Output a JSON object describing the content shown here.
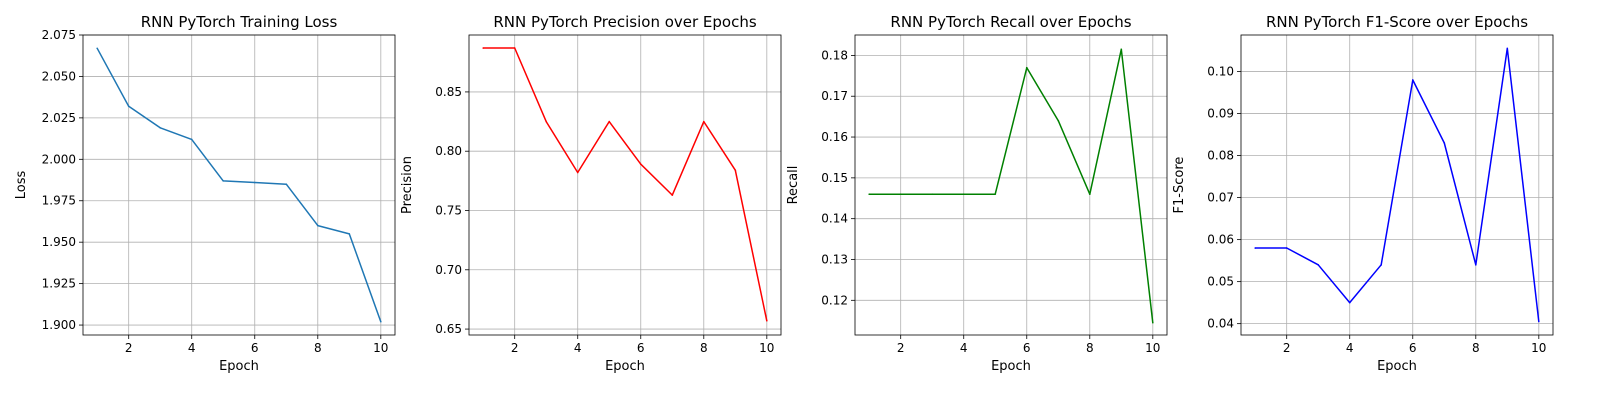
{
  "chart_data": [
    {
      "type": "line",
      "title": "RNN PyTorch Training Loss",
      "xlabel": "Epoch",
      "ylabel": "Loss",
      "grid": true,
      "color": "#1f77b4",
      "xlim": [
        0.55,
        10.45
      ],
      "ylim": [
        1.894,
        2.075
      ],
      "x_ticks": [
        2,
        4,
        6,
        8,
        10
      ],
      "y_ticks": [
        1.9,
        1.925,
        1.95,
        1.975,
        2.0,
        2.025,
        2.05,
        2.075
      ],
      "y_tick_labels": [
        "1.900",
        "1.925",
        "1.950",
        "1.975",
        "2.000",
        "2.025",
        "2.050",
        "2.075"
      ],
      "series": [
        {
          "x": [
            1,
            2,
            3,
            4,
            5,
            6,
            7,
            8,
            9,
            10
          ],
          "values": [
            2.067,
            2.032,
            2.019,
            2.012,
            1.987,
            1.986,
            1.985,
            1.96,
            1.955,
            1.902
          ]
        }
      ]
    },
    {
      "type": "line",
      "title": "RNN PyTorch Precision over Epochs",
      "xlabel": "Epoch",
      "ylabel": "Precision",
      "grid": true,
      "color": "#ff0000",
      "xlim": [
        0.55,
        10.45
      ],
      "ylim": [
        0.645,
        0.898
      ],
      "x_ticks": [
        2,
        4,
        6,
        8,
        10
      ],
      "y_ticks": [
        0.65,
        0.7,
        0.75,
        0.8,
        0.85
      ],
      "y_tick_labels": [
        "0.65",
        "0.70",
        "0.75",
        "0.80",
        "0.85"
      ],
      "series": [
        {
          "x": [
            1,
            2,
            3,
            4,
            5,
            6,
            7,
            8,
            9,
            10
          ],
          "values": [
            0.887,
            0.887,
            0.825,
            0.782,
            0.825,
            0.789,
            0.763,
            0.825,
            0.784,
            0.657
          ]
        }
      ]
    },
    {
      "type": "line",
      "title": "RNN PyTorch Recall over Epochs",
      "xlabel": "Epoch",
      "ylabel": "Recall",
      "grid": true,
      "color": "#008000",
      "xlim": [
        0.55,
        10.45
      ],
      "ylim": [
        0.1115,
        0.185
      ],
      "x_ticks": [
        2,
        4,
        6,
        8,
        10
      ],
      "y_ticks": [
        0.12,
        0.13,
        0.14,
        0.15,
        0.16,
        0.17,
        0.18
      ],
      "y_tick_labels": [
        "0.12",
        "0.13",
        "0.14",
        "0.15",
        "0.16",
        "0.17",
        "0.18"
      ],
      "series": [
        {
          "x": [
            1,
            2,
            3,
            4,
            5,
            6,
            7,
            8,
            9,
            10
          ],
          "values": [
            0.146,
            0.146,
            0.146,
            0.146,
            0.146,
            0.177,
            0.164,
            0.146,
            0.1815,
            0.1145
          ]
        }
      ]
    },
    {
      "type": "line",
      "title": "RNN PyTorch F1-Score over Epochs",
      "xlabel": "Epoch",
      "ylabel": "F1-Score",
      "grid": true,
      "color": "#0000ff",
      "xlim": [
        0.55,
        10.45
      ],
      "ylim": [
        0.0373,
        0.1087
      ],
      "x_ticks": [
        2,
        4,
        6,
        8,
        10
      ],
      "y_ticks": [
        0.04,
        0.05,
        0.06,
        0.07,
        0.08,
        0.09,
        0.1
      ],
      "y_tick_labels": [
        "0.04",
        "0.05",
        "0.06",
        "0.07",
        "0.08",
        "0.09",
        "0.10"
      ],
      "series": [
        {
          "x": [
            1,
            2,
            3,
            4,
            5,
            6,
            7,
            8,
            9,
            10
          ],
          "values": [
            0.058,
            0.058,
            0.054,
            0.045,
            0.054,
            0.098,
            0.083,
            0.054,
            0.1055,
            0.0405
          ]
        }
      ]
    }
  ]
}
